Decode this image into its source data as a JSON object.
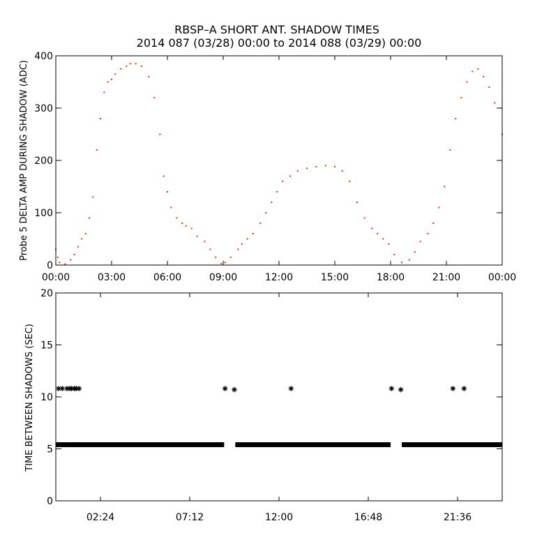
{
  "title_line1": "RBSP–A SHORT ANT. SHADOW TIMES",
  "title_line2": "2014 087 (03/28) 00:00 to 2014 088 (03/29) 00:00",
  "colors": {
    "top_points": "#dd3311",
    "bottom_points": "#000000",
    "axis": "#000000"
  },
  "chart_data": [
    {
      "type": "scatter",
      "title": "",
      "xlabel": "",
      "ylabel": "Probe 5 DELTA AMP DURING SHADOW (ADC)",
      "xlim": [
        0,
        24
      ],
      "ylim": [
        0,
        400
      ],
      "x_ticks": [
        0,
        3,
        6,
        9,
        12,
        15,
        18,
        21,
        24
      ],
      "x_tick_labels": [
        "00:00",
        "03:00",
        "06:00",
        "09:00",
        "12:00",
        "15:00",
        "18:00",
        "21:00",
        "00:00"
      ],
      "y_ticks": [
        0,
        100,
        200,
        300,
        400
      ],
      "y_tick_labels": [
        "0",
        "100",
        "200",
        "300",
        "400"
      ],
      "marker": "dot",
      "series": [
        {
          "x_unit": "hours",
          "x": [
            0.0,
            0.1,
            0.2,
            0.5,
            0.8,
            1.0,
            1.2,
            1.4,
            1.6,
            1.8,
            2.0,
            2.2,
            2.4,
            2.6,
            2.8,
            3.0,
            3.2,
            3.5,
            3.8,
            4.0,
            4.3,
            4.6,
            5.0,
            5.3,
            5.6,
            5.8,
            6.0,
            6.2,
            6.5,
            6.8,
            7.0,
            7.3,
            7.6,
            8.0,
            8.3,
            8.6,
            8.9,
            9.1,
            9.4,
            9.8,
            10.0,
            10.3,
            10.6,
            11.0,
            11.3,
            11.6,
            11.9,
            12.2,
            12.6,
            13.0,
            13.5,
            14.0,
            14.5,
            15.0,
            15.4,
            15.8,
            16.2,
            16.6,
            17.0,
            17.3,
            17.6,
            17.9,
            18.2,
            18.6,
            19.0,
            19.3,
            19.6,
            20.0,
            20.3,
            20.6,
            20.9,
            21.2,
            21.5,
            21.8,
            22.1,
            22.4,
            22.7,
            23.0,
            23.3,
            23.6,
            24.0
          ],
          "y": [
            30,
            15,
            5,
            2,
            10,
            20,
            35,
            50,
            60,
            90,
            130,
            220,
            280,
            330,
            350,
            355,
            365,
            375,
            380,
            385,
            385,
            380,
            360,
            320,
            250,
            170,
            140,
            110,
            90,
            80,
            75,
            70,
            55,
            45,
            30,
            15,
            3,
            5,
            15,
            30,
            40,
            50,
            60,
            80,
            100,
            120,
            140,
            160,
            170,
            180,
            185,
            188,
            190,
            188,
            180,
            160,
            120,
            90,
            70,
            60,
            50,
            40,
            20,
            5,
            10,
            25,
            45,
            60,
            80,
            110,
            150,
            220,
            280,
            320,
            350,
            370,
            375,
            360,
            340,
            310,
            250
          ]
        }
      ]
    },
    {
      "type": "scatter",
      "title": "",
      "xlabel": "",
      "ylabel": "TIME BETWEEN SHADOWS (SEC)",
      "xlim": [
        0,
        24
      ],
      "ylim": [
        0,
        20
      ],
      "x_ticks": [
        2.4,
        7.2,
        12.0,
        16.8,
        21.6
      ],
      "x_tick_labels": [
        "02:24",
        "07:12",
        "12:00",
        "16:48",
        "21:36"
      ],
      "y_ticks": [
        0,
        5,
        10,
        15,
        20
      ],
      "y_tick_labels": [
        "0",
        "5",
        "10",
        "15",
        "20"
      ],
      "marker": "asterisk",
      "series": [
        {
          "x_unit": "hours",
          "x": [
            0.15,
            0.35,
            0.6,
            0.75,
            0.85,
            1.0,
            1.1,
            1.25,
            9.1,
            9.6,
            12.65,
            18.05,
            18.55,
            21.35,
            21.95
          ],
          "y": [
            10.8,
            10.8,
            10.8,
            10.8,
            10.8,
            10.8,
            10.8,
            10.8,
            10.8,
            10.7,
            10.8,
            10.8,
            10.7,
            10.8,
            10.8
          ]
        },
        {
          "x_unit": "hours",
          "x_start": [
            0.0,
            0.8,
            9.65,
            18.6
          ],
          "x_end": [
            1.45,
            9.05,
            18.0,
            24.0
          ],
          "y": 5.4
        }
      ]
    }
  ]
}
